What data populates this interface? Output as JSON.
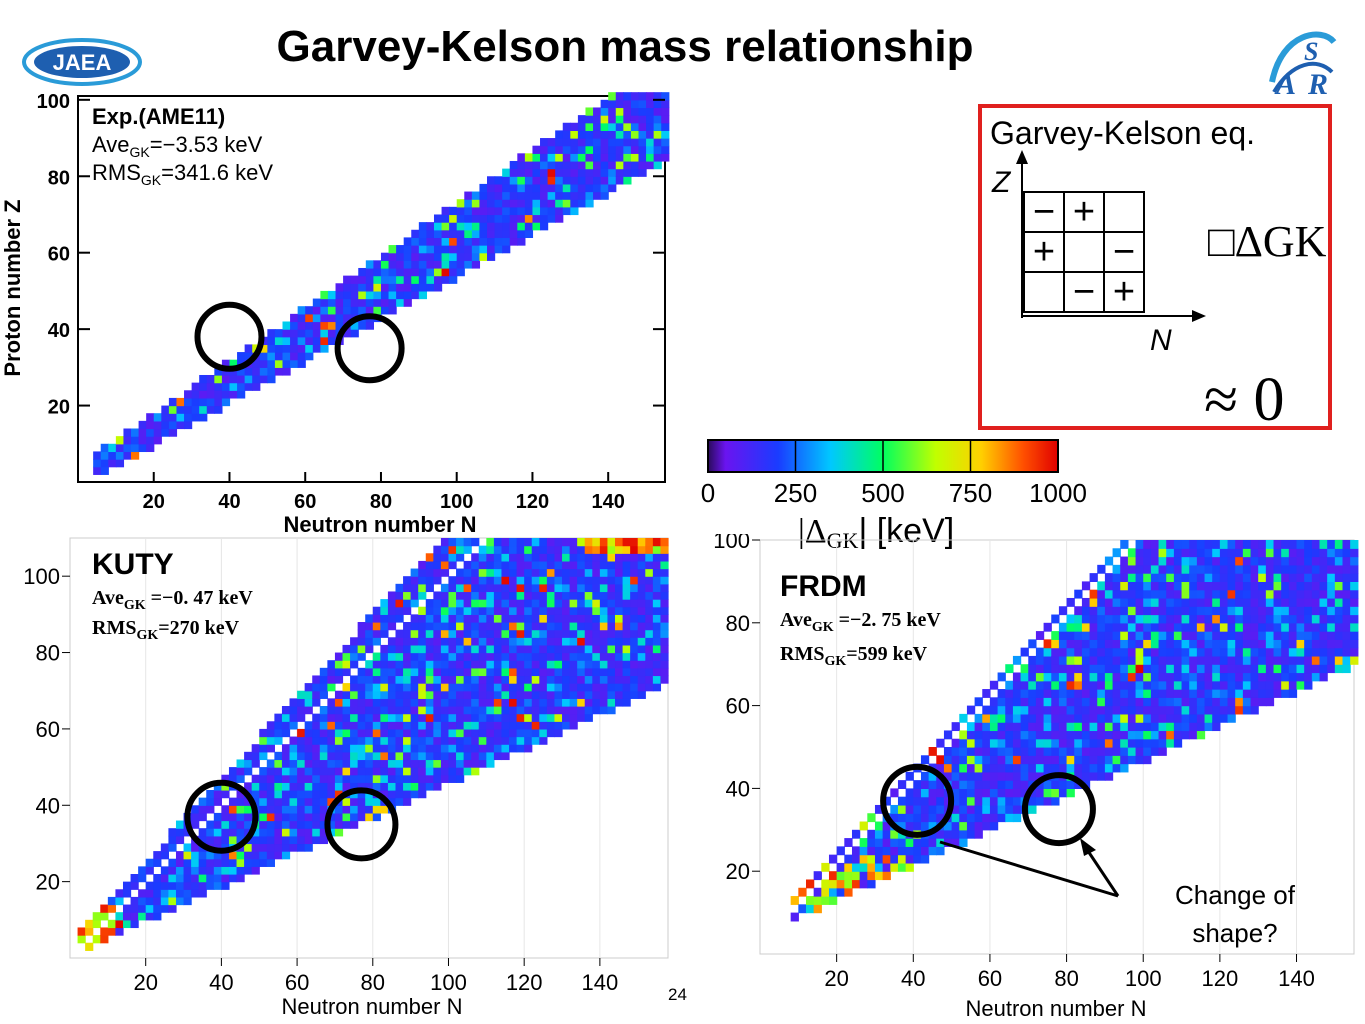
{
  "title": "Garvey-Kelson mass relationship",
  "logos": {
    "left": "JAEA",
    "right_s": "S",
    "right_a": "A",
    "right_r": "R"
  },
  "slide_number": "24",
  "gk_box": {
    "title": "Garvey-Kelson eq.",
    "z_axis": "Z",
    "n_axis": "N",
    "grid": [
      [
        "−",
        "+",
        ""
      ],
      [
        "+",
        "",
        "−"
      ],
      [
        "",
        "−",
        "+"
      ]
    ],
    "formula": "□ΔGK",
    "approx": "≈ 0",
    "border_color": "#e0201e"
  },
  "colorbar": {
    "ticks": [
      "0",
      "250",
      "500",
      "750",
      "1000"
    ],
    "label_prefix": "|Δ",
    "label_sub": "GK",
    "label_suffix": "| [keV]",
    "range": [
      0,
      1000
    ]
  },
  "annotation": {
    "text_line1": "Change of",
    "text_line2": "shape?"
  },
  "chart_data": [
    {
      "type": "scatter",
      "name": "Exp.(AME11)",
      "xlabel": "Neutron number N",
      "ylabel": "Proton number Z",
      "xticks": [
        "20",
        "40",
        "60",
        "80",
        "100",
        "120",
        "140"
      ],
      "yticks": [
        "20",
        "40",
        "60",
        "80",
        "100"
      ],
      "xlim": [
        0,
        155
      ],
      "ylim": [
        0,
        101
      ],
      "legend_line1": "Exp.(AME11)",
      "ave_label": "Ave",
      "ave_sub": "GK",
      "ave_value": "=−3.53 keV",
      "rms_label": "RMS",
      "rms_sub": "GK",
      "rms_value": "=341.6 keV",
      "circles": [
        {
          "x": 40,
          "y": 38
        },
        {
          "x": 77,
          "y": 35
        }
      ]
    },
    {
      "type": "heatmap",
      "name": "KUTY",
      "xlabel": "Neutron number N",
      "ylabel": "",
      "xticks": [
        "20",
        "40",
        "60",
        "80",
        "100",
        "120",
        "140"
      ],
      "yticks": [
        "20",
        "40",
        "60",
        "80",
        "100"
      ],
      "xlim": [
        0,
        158
      ],
      "ylim": [
        0,
        110
      ],
      "legend_line1": "KUTY",
      "ave_label": "Ave",
      "ave_sub": "GK",
      "ave_value": " =−0. 47 keV",
      "rms_label": "RMS",
      "rms_sub": "GK",
      "rms_value": "=270 keV",
      "circles": [
        {
          "x": 40,
          "y": 37
        },
        {
          "x": 77,
          "y": 35
        }
      ]
    },
    {
      "type": "heatmap",
      "name": "FRDM",
      "xlabel": "Neutron number N",
      "ylabel": "",
      "xticks": [
        "20",
        "40",
        "60",
        "80",
        "100",
        "120",
        "140"
      ],
      "yticks": [
        "20",
        "40",
        "60",
        "80",
        "100"
      ],
      "xlim": [
        0,
        155
      ],
      "ylim": [
        0,
        100
      ],
      "legend_line1": "FRDM",
      "ave_label": "Ave",
      "ave_sub": "GK",
      "ave_value": " =−2. 75 keV",
      "rms_label": "RMS",
      "rms_sub": "GK",
      "rms_value": "=599 keV",
      "circles": [
        {
          "x": 41,
          "y": 37
        },
        {
          "x": 78,
          "y": 35
        }
      ]
    }
  ]
}
